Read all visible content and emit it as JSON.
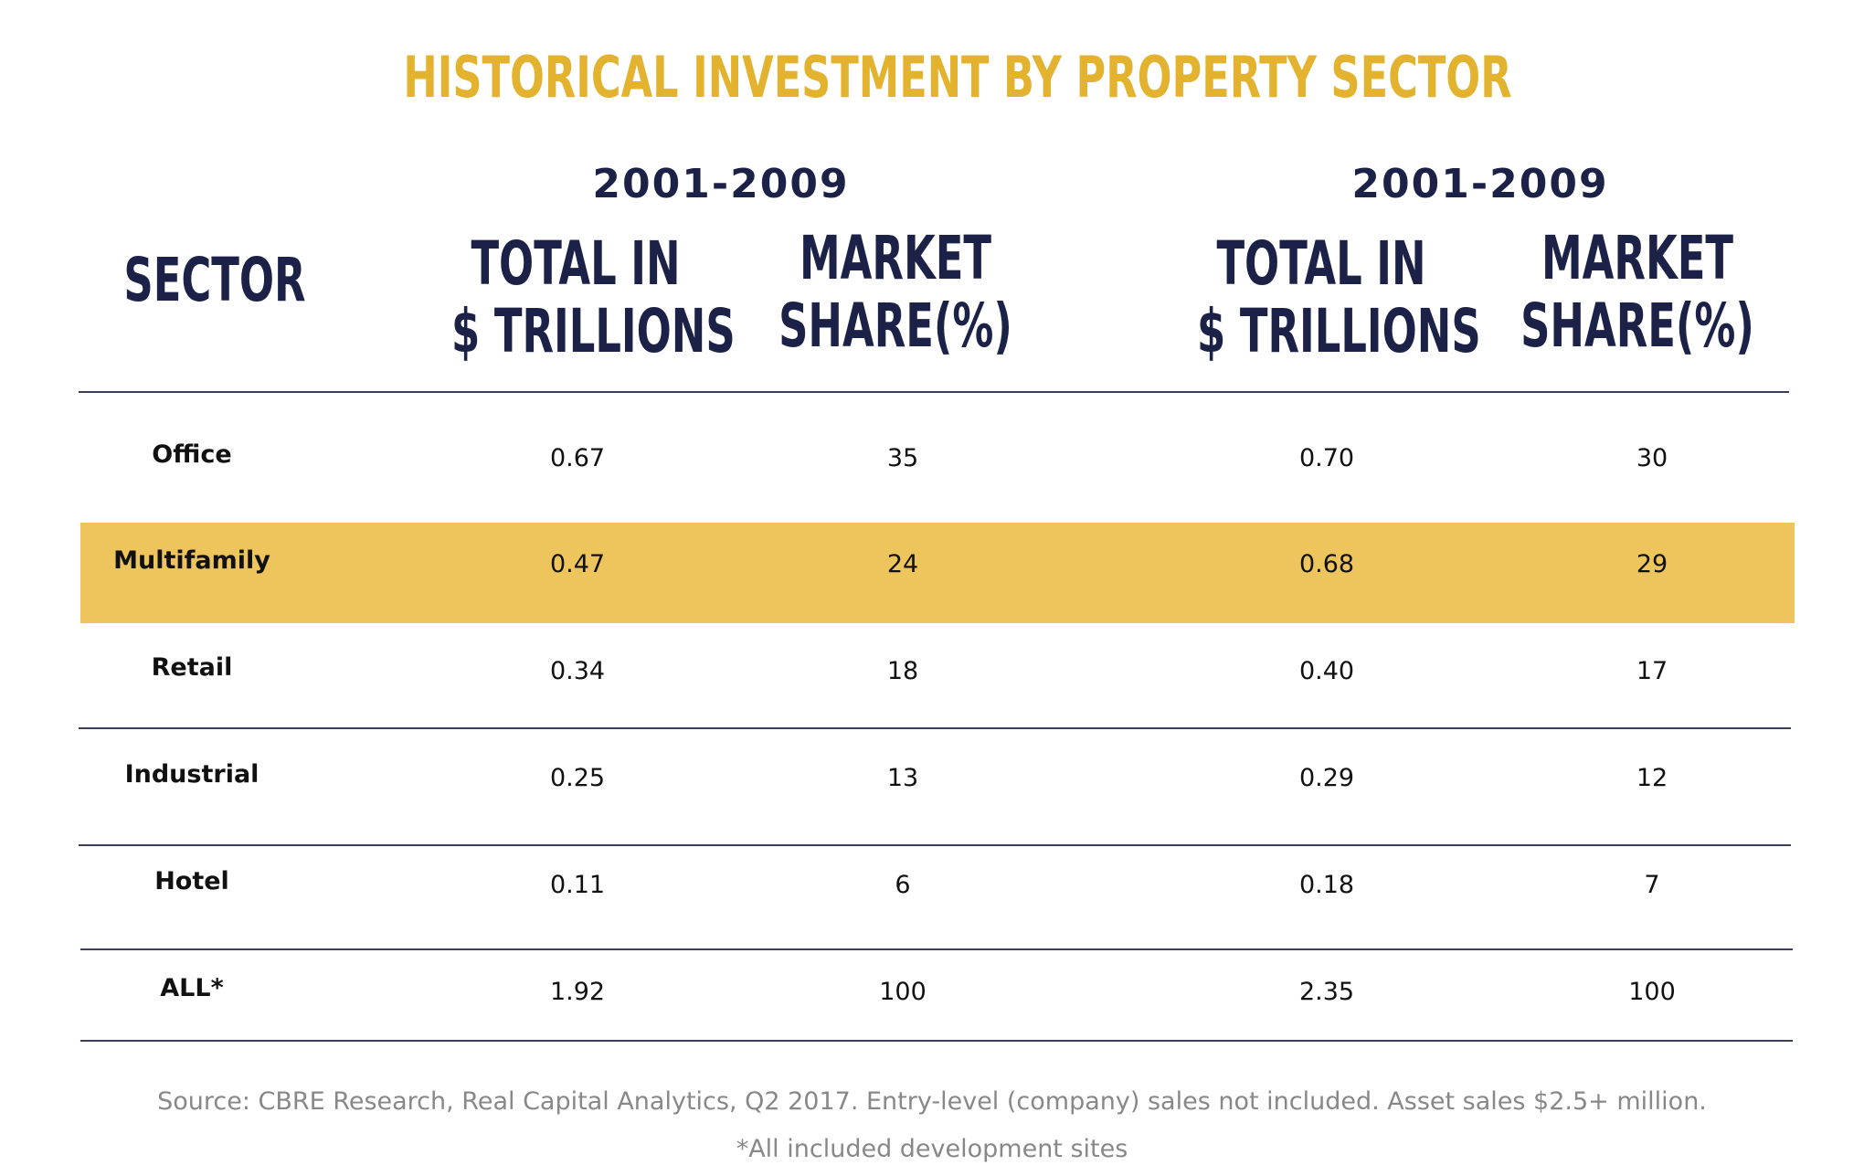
{
  "chart_data": {
    "type": "table",
    "title": "HISTORICAL INVESTMENT BY PROPERTY SECTOR",
    "period_labels": [
      "2001-2009",
      "2001-2009"
    ],
    "column_headers": {
      "sector": "SECTOR",
      "total_line1": "TOTAL IN",
      "total_line2": "$ TRILLIONS",
      "share_line1": "MARKET",
      "share_line2": "SHARE(%)"
    },
    "rows": [
      {
        "sector": "Office",
        "total1": "0.67",
        "share1": "35",
        "total2": "0.70",
        "share2": "30"
      },
      {
        "sector": "Multifamily",
        "total1": "0.47",
        "share1": "24",
        "total2": "0.68",
        "share2": "29"
      },
      {
        "sector": "Retail",
        "total1": "0.34",
        "share1": "18",
        "total2": "0.40",
        "share2": "17"
      },
      {
        "sector": "Industrial",
        "total1": "0.25",
        "share1": "13",
        "total2": "0.29",
        "share2": "12"
      },
      {
        "sector": "Hotel",
        "total1": "0.11",
        "share1": "6",
        "total2": "0.18",
        "share2": "7"
      },
      {
        "sector": "ALL*",
        "total1": "1.92",
        "share1": "100",
        "total2": "2.35",
        "share2": "100"
      }
    ],
    "highlighted_row": "Multifamily",
    "source": "Source: CBRE Research, Real Capital Analytics, Q2 2017. Entry-level (company) sales not included. Asset sales $2.5+ million.",
    "footnote": "*All included development sites"
  },
  "colors": {
    "title": "#e3b32f",
    "header": "#1b2147",
    "highlight": "#eec45d",
    "rule": "#3a3f62",
    "source_text": "#888888"
  }
}
